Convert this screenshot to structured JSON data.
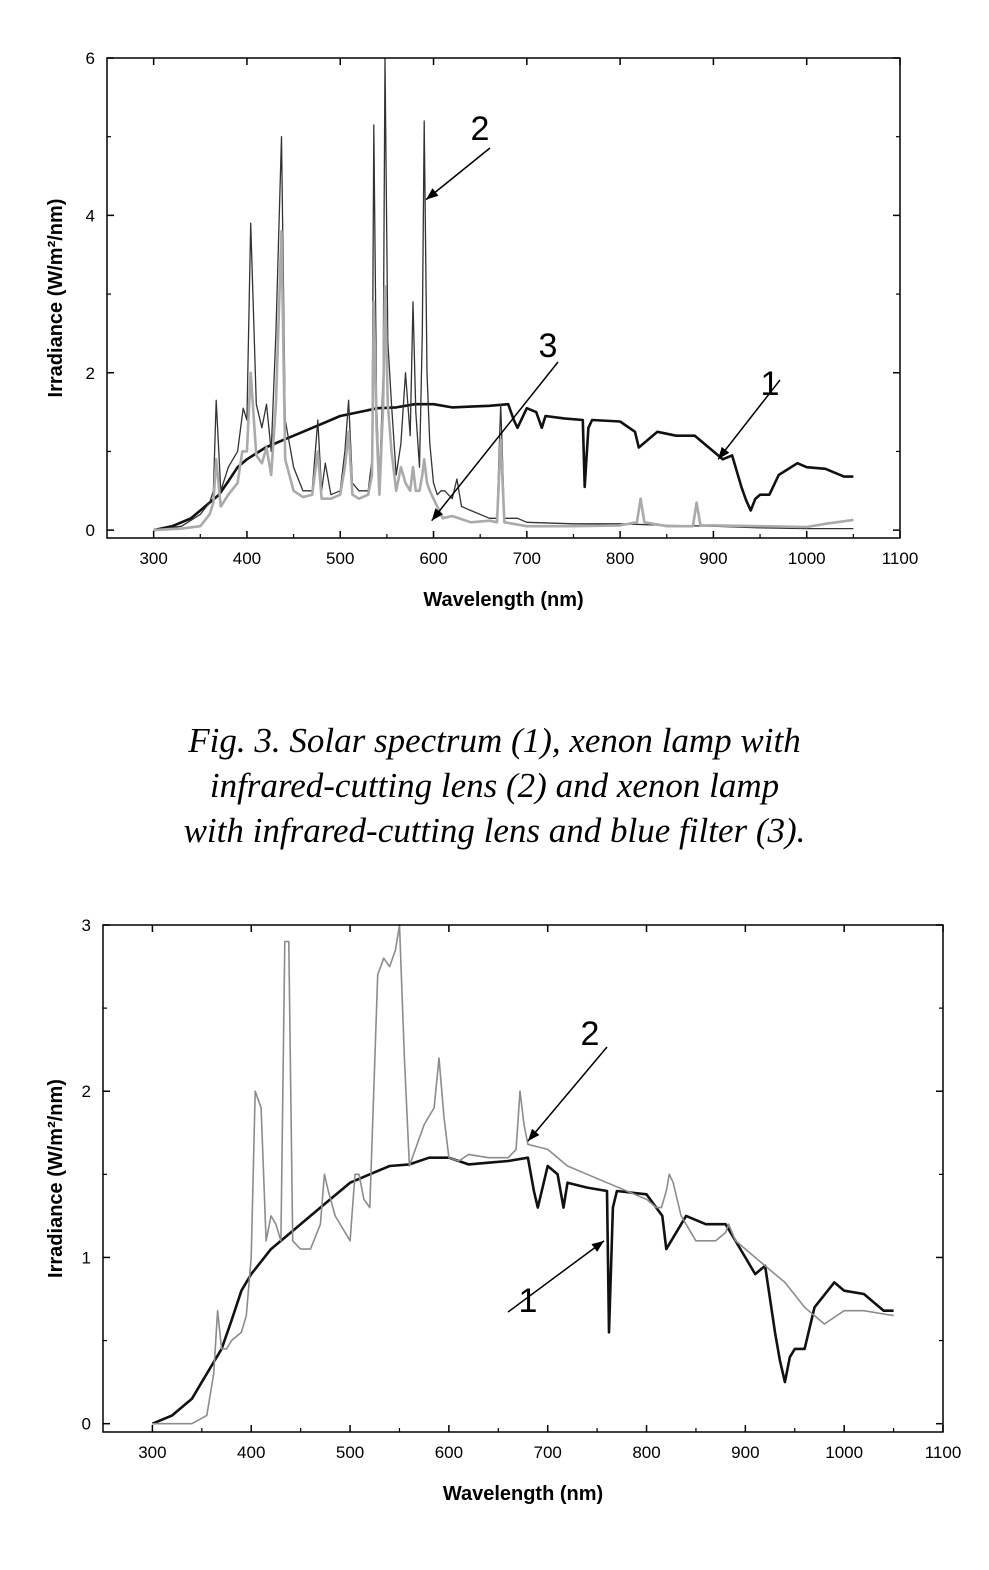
{
  "caption": {
    "line1": "Fig. 3. Solar spectrum (1), xenon lamp with",
    "line2": "infrared-cutting lens (2) and xenon lamp",
    "line3": "with infrared-cutting lens and blue filter (3)."
  },
  "chart_data": [
    {
      "type": "line",
      "xlabel": "Wavelength (nm)",
      "ylabel": "Irradiance (W/m²/nm)",
      "xlim": [
        250,
        1100
      ],
      "ylim": [
        -0.1,
        6
      ],
      "xticks": [
        300,
        400,
        500,
        600,
        700,
        800,
        900,
        1000,
        1100
      ],
      "yticks": [
        0,
        2,
        4,
        6
      ],
      "grid": false,
      "annotations": [
        {
          "text": "1",
          "series": 0,
          "target": [
            905,
            0.9
          ]
        },
        {
          "text": "2",
          "series": 1,
          "target": [
            592,
            4.2
          ]
        },
        {
          "text": "3",
          "series": 2,
          "target": [
            598,
            0.12
          ]
        }
      ],
      "series": [
        {
          "name": "1",
          "color": "#111111",
          "width": 2.6,
          "x": [
            300,
            320,
            340,
            350,
            360,
            370,
            380,
            390,
            400,
            420,
            440,
            460,
            480,
            500,
            520,
            540,
            560,
            580,
            600,
            620,
            640,
            660,
            680,
            686,
            690,
            700,
            710,
            716,
            720,
            740,
            760,
            762,
            766,
            770,
            800,
            816,
            820,
            840,
            860,
            880,
            900,
            910,
            920,
            930,
            935,
            940,
            945,
            950,
            960,
            970,
            990,
            1000,
            1020,
            1040,
            1050
          ],
          "y": [
            0.0,
            0.05,
            0.15,
            0.25,
            0.35,
            0.45,
            0.62,
            0.8,
            0.9,
            1.05,
            1.15,
            1.25,
            1.35,
            1.45,
            1.5,
            1.55,
            1.56,
            1.6,
            1.6,
            1.56,
            1.57,
            1.58,
            1.6,
            1.4,
            1.3,
            1.55,
            1.5,
            1.3,
            1.45,
            1.42,
            1.4,
            0.55,
            1.3,
            1.4,
            1.38,
            1.25,
            1.05,
            1.25,
            1.2,
            1.2,
            1.0,
            0.9,
            0.95,
            0.55,
            0.38,
            0.25,
            0.4,
            0.45,
            0.45,
            0.7,
            0.85,
            0.8,
            0.78,
            0.68,
            0.68
          ]
        },
        {
          "name": "2",
          "color": "#333333",
          "width": 1.3,
          "x": [
            300,
            330,
            350,
            360,
            364,
            367,
            372,
            380,
            390,
            396,
            400,
            404,
            410,
            416,
            421,
            426,
            431,
            437,
            441,
            450,
            460,
            470,
            476,
            480,
            484,
            490,
            500,
            505,
            509,
            513,
            520,
            530,
            534,
            536,
            539,
            542,
            546,
            548,
            551,
            555,
            560,
            565,
            570,
            575,
            578,
            581,
            585,
            588,
            590,
            593,
            596,
            600,
            604,
            608,
            612,
            620,
            625,
            630,
            640,
            660,
            668,
            672,
            676,
            690,
            700,
            750,
            800,
            850,
            900,
            950,
            1000,
            1050
          ],
          "y": [
            0.0,
            0.05,
            0.2,
            0.35,
            0.5,
            1.65,
            0.5,
            0.8,
            1.0,
            1.55,
            1.4,
            3.9,
            1.6,
            1.3,
            1.6,
            1.0,
            2.5,
            5.0,
            1.4,
            0.8,
            0.5,
            0.5,
            1.4,
            0.5,
            0.85,
            0.45,
            0.5,
            1.0,
            1.65,
            0.6,
            0.5,
            0.5,
            0.9,
            5.15,
            1.6,
            0.6,
            2.0,
            6.0,
            2.4,
            1.6,
            0.7,
            1.1,
            2.0,
            1.2,
            2.9,
            1.5,
            0.8,
            2.5,
            5.2,
            2.0,
            1.1,
            0.6,
            0.45,
            0.5,
            0.5,
            0.4,
            0.65,
            0.3,
            0.25,
            0.15,
            0.15,
            1.6,
            0.15,
            0.15,
            0.1,
            0.08,
            0.08,
            0.06,
            0.05,
            0.03,
            0.02,
            0.02
          ]
        },
        {
          "name": "3",
          "color": "#aaaaaa",
          "width": 2.6,
          "x": [
            300,
            330,
            350,
            360,
            364,
            367,
            372,
            380,
            390,
            395,
            400,
            404,
            410,
            416,
            421,
            426,
            431,
            437,
            441,
            450,
            460,
            470,
            476,
            480,
            490,
            500,
            505,
            509,
            513,
            520,
            530,
            534,
            536,
            539,
            542,
            546,
            548,
            551,
            555,
            560,
            565,
            570,
            575,
            578,
            581,
            585,
            588,
            590,
            593,
            596,
            600,
            610,
            620,
            640,
            660,
            668,
            672,
            676,
            700,
            750,
            800,
            818,
            822,
            826,
            850,
            878,
            882,
            886,
            900,
            950,
            1000,
            1020,
            1050
          ],
          "y": [
            0.0,
            0.02,
            0.05,
            0.2,
            0.35,
            0.9,
            0.3,
            0.45,
            0.6,
            1.0,
            1.0,
            2.0,
            0.95,
            0.85,
            1.05,
            0.7,
            1.6,
            3.8,
            0.9,
            0.5,
            0.42,
            0.45,
            1.0,
            0.4,
            0.4,
            0.45,
            0.8,
            1.25,
            0.45,
            0.4,
            0.45,
            0.7,
            2.9,
            1.3,
            0.45,
            1.6,
            3.1,
            1.6,
            1.0,
            0.5,
            0.8,
            0.6,
            0.5,
            0.8,
            0.5,
            0.5,
            0.7,
            0.9,
            0.6,
            0.5,
            0.4,
            0.15,
            0.18,
            0.1,
            0.12,
            0.1,
            1.15,
            0.1,
            0.05,
            0.05,
            0.06,
            0.1,
            0.4,
            0.1,
            0.05,
            0.05,
            0.35,
            0.06,
            0.06,
            0.05,
            0.04,
            0.08,
            0.13
          ]
        }
      ]
    },
    {
      "type": "line",
      "xlabel": "Wavelength (nm)",
      "ylabel": "Irradiance (W/m²/nm)",
      "xlim": [
        250,
        1100
      ],
      "ylim": [
        -0.05,
        3
      ],
      "xticks": [
        300,
        400,
        500,
        600,
        700,
        800,
        900,
        1000,
        1100
      ],
      "yticks": [
        0,
        1,
        2,
        3
      ],
      "grid": false,
      "annotations": [
        {
          "text": "1",
          "series": 0,
          "target": [
            757,
            1.1
          ]
        },
        {
          "text": "2",
          "series": 1,
          "target": [
            680,
            1.7
          ]
        }
      ],
      "series": [
        {
          "name": "1",
          "color": "#111111",
          "width": 2.6,
          "x": [
            300,
            320,
            340,
            350,
            360,
            370,
            380,
            390,
            400,
            420,
            440,
            460,
            480,
            500,
            520,
            540,
            560,
            580,
            600,
            620,
            640,
            660,
            680,
            686,
            690,
            700,
            710,
            716,
            720,
            740,
            760,
            762,
            766,
            770,
            800,
            816,
            820,
            840,
            860,
            880,
            900,
            910,
            920,
            930,
            935,
            940,
            945,
            950,
            960,
            970,
            990,
            1000,
            1020,
            1040,
            1050
          ],
          "y": [
            0.0,
            0.05,
            0.15,
            0.25,
            0.35,
            0.45,
            0.62,
            0.8,
            0.9,
            1.05,
            1.15,
            1.25,
            1.35,
            1.45,
            1.5,
            1.55,
            1.56,
            1.6,
            1.6,
            1.56,
            1.57,
            1.58,
            1.6,
            1.4,
            1.3,
            1.55,
            1.5,
            1.3,
            1.45,
            1.42,
            1.4,
            0.55,
            1.3,
            1.4,
            1.38,
            1.25,
            1.05,
            1.25,
            1.2,
            1.2,
            1.0,
            0.9,
            0.95,
            0.55,
            0.38,
            0.25,
            0.4,
            0.45,
            0.45,
            0.7,
            0.85,
            0.8,
            0.78,
            0.68,
            0.68
          ]
        },
        {
          "name": "2",
          "color": "#8c8c8c",
          "width": 1.6,
          "x": [
            300,
            320,
            340,
            355,
            362,
            366,
            370,
            375,
            380,
            390,
            395,
            400,
            404,
            410,
            415,
            420,
            425,
            430,
            434,
            438,
            442,
            450,
            460,
            470,
            474,
            478,
            485,
            500,
            505,
            509,
            514,
            520,
            528,
            534,
            540,
            546,
            550,
            555,
            560,
            575,
            585,
            590,
            595,
            600,
            610,
            620,
            640,
            660,
            668,
            672,
            676,
            680,
            700,
            720,
            740,
            760,
            780,
            800,
            810,
            815,
            820,
            823,
            827,
            835,
            850,
            870,
            880,
            883,
            890,
            900,
            920,
            940,
            960,
            980,
            1000,
            1020,
            1040,
            1050
          ],
          "y": [
            0.0,
            0.0,
            0.0,
            0.05,
            0.3,
            0.68,
            0.45,
            0.45,
            0.5,
            0.55,
            0.65,
            1.0,
            2.0,
            1.9,
            1.1,
            1.25,
            1.2,
            1.1,
            2.9,
            2.9,
            1.1,
            1.05,
            1.05,
            1.2,
            1.5,
            1.4,
            1.25,
            1.1,
            1.5,
            1.5,
            1.35,
            1.3,
            2.7,
            2.8,
            2.75,
            2.85,
            3.0,
            2.2,
            1.55,
            1.8,
            1.9,
            2.2,
            1.85,
            1.6,
            1.58,
            1.62,
            1.6,
            1.6,
            1.65,
            2.0,
            1.8,
            1.68,
            1.65,
            1.55,
            1.5,
            1.45,
            1.4,
            1.35,
            1.3,
            1.3,
            1.4,
            1.5,
            1.45,
            1.25,
            1.1,
            1.1,
            1.15,
            1.2,
            1.1,
            1.05,
            0.95,
            0.85,
            0.7,
            0.6,
            0.68,
            0.68,
            0.66,
            0.65
          ]
        }
      ]
    }
  ]
}
